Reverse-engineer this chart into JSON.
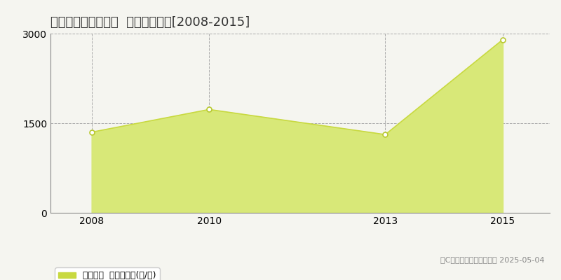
{
  "title": "いちき串木野市川上  林地価格推移[2008-2015]",
  "years": [
    2008,
    2010,
    2013,
    2015
  ],
  "values": [
    1350,
    1730,
    1310,
    2900
  ],
  "line_color": "#c8d940",
  "fill_color": "#d8e878",
  "fill_alpha": 1.0,
  "marker_color": "white",
  "marker_edge_color": "#b8c830",
  "ylim": [
    0,
    3000
  ],
  "yticks": [
    0,
    1500,
    3000
  ],
  "background_color": "#f5f5f0",
  "grid_color": "#aaaaaa",
  "legend_label": "林地価格  平均坪単価(円/坪)",
  "legend_color": "#c8d940",
  "copyright_text": "（C）土地価格ドットコム 2025-05-04",
  "title_fontsize": 13,
  "tick_fontsize": 10,
  "legend_fontsize": 9,
  "copyright_fontsize": 8
}
